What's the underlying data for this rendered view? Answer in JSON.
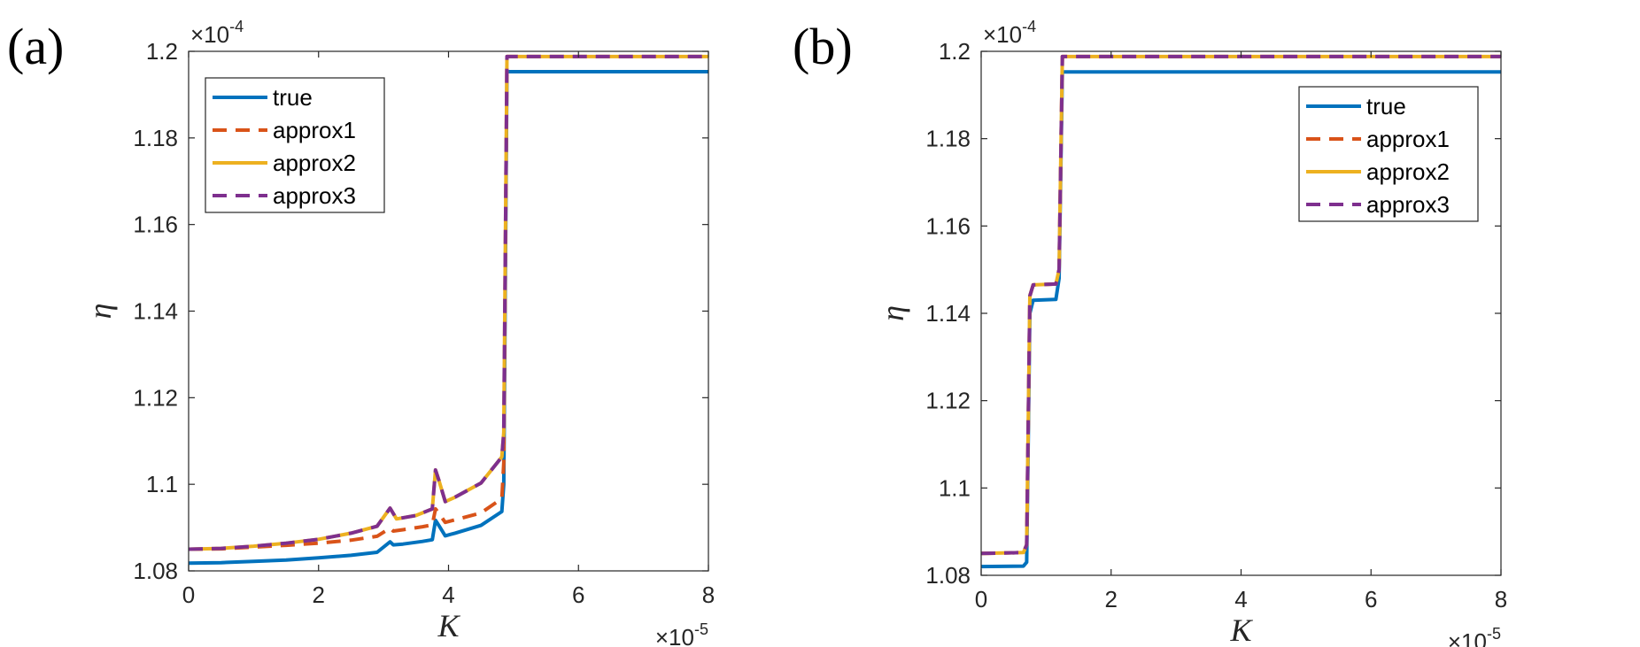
{
  "chart_data": [
    {
      "type": "line",
      "panel_label": "(a)",
      "xlabel": "K",
      "ylabel": "η",
      "x_exponent": "×10",
      "x_exponent_power": "-5",
      "y_exponent": "×10",
      "y_exponent_power": "-4",
      "xlim": [
        0,
        8
      ],
      "ylim": [
        1.08,
        1.2
      ],
      "xticks": [
        0,
        2,
        4,
        6,
        8
      ],
      "xtick_labels": [
        "0",
        "2",
        "4",
        "6",
        "8"
      ],
      "yticks": [
        1.08,
        1.1,
        1.12,
        1.14,
        1.16,
        1.18,
        1.2
      ],
      "ytick_labels": [
        "1.08",
        "1.1",
        "1.12",
        "1.14",
        "1.16",
        "1.18",
        "1.2"
      ],
      "legend_position": "top-left",
      "series": [
        {
          "name": "true",
          "color": "#0072BD",
          "dash": "solid",
          "x": [
            0,
            0.5,
            1,
            1.5,
            2,
            2.5,
            2.9,
            3.1,
            3.15,
            3.3,
            3.6,
            3.75,
            3.8,
            3.85,
            3.95,
            4.1,
            4.5,
            4.82,
            4.85,
            4.9,
            8
          ],
          "y": [
            1.0818,
            1.0819,
            1.0822,
            1.0825,
            1.083,
            1.0836,
            1.0843,
            1.0867,
            1.086,
            1.0862,
            1.0868,
            1.0872,
            1.0917,
            1.0905,
            1.0881,
            1.0887,
            1.0905,
            1.0937,
            1.1,
            1.1953,
            1.1953
          ]
        },
        {
          "name": "approx1",
          "color": "#D95319",
          "dash": "dashed",
          "x": [
            0,
            0.5,
            1,
            1.5,
            2,
            2.5,
            2.9,
            3.1,
            3.15,
            3.3,
            3.6,
            3.75,
            3.8,
            3.85,
            3.95,
            4.1,
            4.5,
            4.82,
            4.85,
            4.9,
            8
          ],
          "y": [
            1.085,
            1.0851,
            1.0855,
            1.0859,
            1.0864,
            1.0871,
            1.088,
            1.0899,
            1.0892,
            1.0895,
            1.0902,
            1.0906,
            1.0943,
            1.0933,
            1.0912,
            1.0918,
            1.0934,
            1.0967,
            1.105,
            1.1988,
            1.1988
          ]
        },
        {
          "name": "approx2",
          "color": "#EDB120",
          "dash": "solid",
          "x": [
            0,
            0.5,
            1,
            1.5,
            2,
            2.5,
            2.9,
            3.1,
            3.2,
            3.5,
            3.75,
            3.8,
            3.85,
            3.95,
            4.1,
            4.5,
            4.82,
            4.85,
            4.9,
            8
          ],
          "y": [
            1.085,
            1.0852,
            1.0857,
            1.0864,
            1.0873,
            1.0887,
            1.0903,
            1.0945,
            1.092,
            1.0928,
            1.0943,
            1.1033,
            1.101,
            1.096,
            1.097,
            1.1003,
            1.1063,
            1.112,
            1.1988,
            1.1988
          ]
        },
        {
          "name": "approx3",
          "color": "#7E2F8E",
          "dash": "dashed",
          "x": [
            0,
            0.5,
            1,
            1.5,
            2,
            2.5,
            2.9,
            3.1,
            3.2,
            3.5,
            3.75,
            3.8,
            3.85,
            3.95,
            4.1,
            4.5,
            4.82,
            4.85,
            4.9,
            8
          ],
          "y": [
            1.085,
            1.0852,
            1.0857,
            1.0864,
            1.0873,
            1.0887,
            1.0903,
            1.0945,
            1.092,
            1.0928,
            1.0943,
            1.1033,
            1.101,
            1.096,
            1.097,
            1.1003,
            1.1063,
            1.112,
            1.1988,
            1.1988
          ]
        }
      ]
    },
    {
      "type": "line",
      "panel_label": "(b)",
      "xlabel": "K",
      "ylabel": "η",
      "x_exponent": "×10",
      "x_exponent_power": "-5",
      "y_exponent": "×10",
      "y_exponent_power": "-4",
      "xlim": [
        0,
        8
      ],
      "ylim": [
        1.08,
        1.2
      ],
      "xticks": [
        0,
        2,
        4,
        6,
        8
      ],
      "xtick_labels": [
        "0",
        "2",
        "4",
        "6",
        "8"
      ],
      "yticks": [
        1.08,
        1.1,
        1.12,
        1.14,
        1.16,
        1.18,
        1.2
      ],
      "ytick_labels": [
        "1.08",
        "1.1",
        "1.12",
        "1.14",
        "1.16",
        "1.18",
        "1.2"
      ],
      "legend_position": "top-right",
      "series": [
        {
          "name": "true",
          "color": "#0072BD",
          "dash": "solid",
          "x": [
            0,
            0.65,
            0.7,
            0.75,
            0.8,
            1.15,
            1.2,
            1.25,
            8
          ],
          "y": [
            1.082,
            1.0821,
            1.083,
            1.14,
            1.143,
            1.1432,
            1.148,
            1.1953,
            1.1953
          ]
        },
        {
          "name": "approx1",
          "color": "#D95319",
          "dash": "dashed",
          "x": [
            0,
            0.65,
            0.7,
            0.75,
            0.8,
            1.15,
            1.2,
            1.25,
            8
          ],
          "y": [
            1.085,
            1.0852,
            1.087,
            1.144,
            1.1465,
            1.1467,
            1.15,
            1.1988,
            1.1988
          ]
        },
        {
          "name": "approx2",
          "color": "#EDB120",
          "dash": "solid",
          "x": [
            0,
            0.65,
            0.7,
            0.75,
            0.8,
            1.15,
            1.2,
            1.25,
            8
          ],
          "y": [
            1.085,
            1.0852,
            1.087,
            1.144,
            1.1465,
            1.1467,
            1.15,
            1.1988,
            1.1988
          ]
        },
        {
          "name": "approx3",
          "color": "#7E2F8E",
          "dash": "dashed",
          "x": [
            0,
            0.65,
            0.7,
            0.75,
            0.8,
            1.15,
            1.2,
            1.25,
            8
          ],
          "y": [
            1.085,
            1.0852,
            1.087,
            1.144,
            1.1465,
            1.1467,
            1.15,
            1.1988,
            1.1988
          ]
        }
      ]
    }
  ]
}
